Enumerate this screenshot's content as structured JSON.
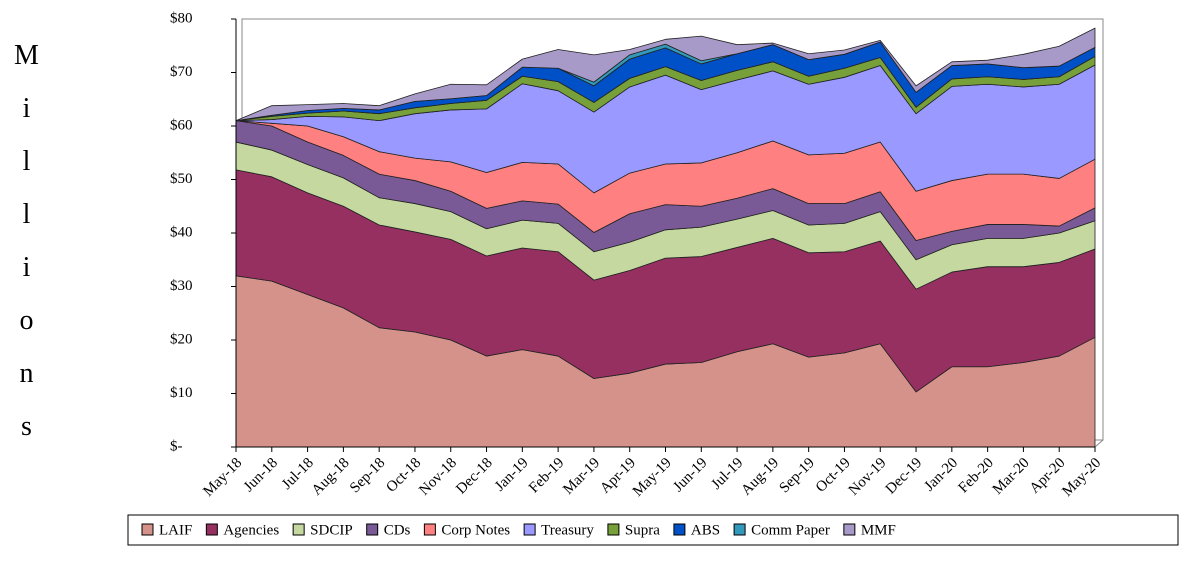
{
  "chart_data": {
    "type": "stacked_area",
    "y_label": "Millions",
    "categories": [
      "May-18",
      "Jun-18",
      "Jul-18",
      "Aug-18",
      "Sep-18",
      "Oct-18",
      "Nov-18",
      "Dec-18",
      "Jan-19",
      "Feb-19",
      "Mar-19",
      "Apr-19",
      "May-19",
      "Jun-19",
      "Jul-19",
      "Aug-19",
      "Sep-19",
      "Oct-19",
      "Nov-19",
      "Dec-19",
      "Jan-20",
      "Feb-20",
      "Mar-20",
      "Apr-20",
      "May-20"
    ],
    "series": [
      {
        "name": "LAIF",
        "color": "#d4928a",
        "values": [
          32,
          31,
          28.5,
          26,
          22.3,
          21.5,
          20,
          17,
          18.2,
          17,
          12.8,
          13.8,
          15.5,
          15.8,
          17.8,
          19.3,
          16.8,
          17.6,
          19.3,
          10.3,
          15,
          15,
          15.8,
          17,
          20.5
        ]
      },
      {
        "name": "Agencies",
        "color": "#953060",
        "values": [
          19.8,
          19.5,
          19,
          19,
          19.2,
          18.7,
          18.8,
          18.7,
          19,
          19.5,
          18.4,
          19.2,
          19.8,
          19.8,
          19.5,
          19.7,
          19.5,
          18.9,
          19.2,
          19.2,
          17.7,
          18.7,
          17.9,
          17.5,
          16.5
        ]
      },
      {
        "name": "SDCIP",
        "color": "#c4d8a0",
        "values": [
          5.2,
          5,
          5.3,
          5.3,
          5.1,
          5.3,
          5.2,
          5.1,
          5.2,
          5.3,
          5.3,
          5.3,
          5.3,
          5.5,
          5.3,
          5.2,
          5.2,
          5.3,
          5.5,
          5.5,
          5.1,
          5.3,
          5.3,
          5.5,
          5.3
        ]
      },
      {
        "name": "CDs",
        "color": "#7a5a96",
        "values": [
          4,
          4.5,
          4.2,
          4.2,
          4.4,
          4.3,
          3.8,
          3.8,
          3.6,
          3.6,
          3.6,
          5.3,
          4.7,
          3.9,
          3.9,
          4.1,
          4,
          3.7,
          3.7,
          3.6,
          2.5,
          2.6,
          2.6,
          1.3,
          2.4
        ]
      },
      {
        "name": "Corp Notes",
        "color": "#ff8080",
        "values": [
          0,
          0.5,
          3,
          3.5,
          4.2,
          4.2,
          5.5,
          6.7,
          7.2,
          7.5,
          7.4,
          7.6,
          7.6,
          8.1,
          8.5,
          8.9,
          9.1,
          9.4,
          9.3,
          9.2,
          9.5,
          9.4,
          9.4,
          8.9,
          9.1
        ]
      },
      {
        "name": "Treasury",
        "color": "#9999ff",
        "values": [
          0,
          0.7,
          1.8,
          3.7,
          5.8,
          8.3,
          9.7,
          11.9,
          14.7,
          13.7,
          15.1,
          16.1,
          16.6,
          13.7,
          13.6,
          13.1,
          13.2,
          14.2,
          14.3,
          14.5,
          17.6,
          16.8,
          16.3,
          17.6,
          17.6
        ]
      },
      {
        "name": "Supra",
        "color": "#77a03a",
        "values": [
          0,
          0.6,
          0.6,
          1.1,
          1.3,
          1.1,
          1.2,
          1.6,
          1.4,
          1.7,
          1.8,
          1.6,
          1.6,
          1.7,
          1.8,
          1.7,
          1.5,
          1.7,
          1.5,
          1.2,
          1.4,
          1.4,
          1.4,
          1.4,
          1.6
        ]
      },
      {
        "name": "ABS",
        "color": "#0050c8",
        "values": [
          0,
          0.2,
          0.5,
          0.5,
          0.7,
          1.2,
          0.9,
          0.9,
          1.7,
          2.5,
          3.1,
          3.6,
          3.5,
          3.1,
          3.1,
          3.2,
          3.1,
          2.6,
          2.9,
          2.8,
          2.5,
          2.4,
          2.2,
          2,
          1.7
        ]
      },
      {
        "name": "Comm Paper",
        "color": "#3399bb",
        "values": [
          0,
          0,
          0,
          0,
          0,
          0,
          0,
          0,
          0,
          0,
          0.7,
          0.8,
          0.7,
          0.6,
          0,
          0,
          0,
          0,
          0,
          0,
          0,
          0,
          0,
          0,
          0
        ]
      },
      {
        "name": "MMF",
        "color": "#a89ac8",
        "values": [
          0,
          1.8,
          1.1,
          0.9,
          0.8,
          1.4,
          2.7,
          2,
          1.5,
          3.5,
          5.1,
          1,
          0.9,
          4.6,
          1.7,
          0.3,
          1.1,
          0.8,
          0.3,
          1.2,
          0.7,
          0.7,
          2.5,
          3.7,
          3.6
        ]
      }
    ],
    "ylim": [
      0,
      80
    ],
    "yticks": [
      {
        "value": 0,
        "label": "$-"
      },
      {
        "value": 10,
        "label": "$10"
      },
      {
        "value": 20,
        "label": "$20"
      },
      {
        "value": 30,
        "label": "$30"
      },
      {
        "value": 40,
        "label": "$40"
      },
      {
        "value": 50,
        "label": "$50"
      },
      {
        "value": 60,
        "label": "$60"
      },
      {
        "value": 70,
        "label": "$70"
      },
      {
        "value": 80,
        "label": "$80"
      }
    ],
    "grid": false,
    "legend": "bottom"
  }
}
